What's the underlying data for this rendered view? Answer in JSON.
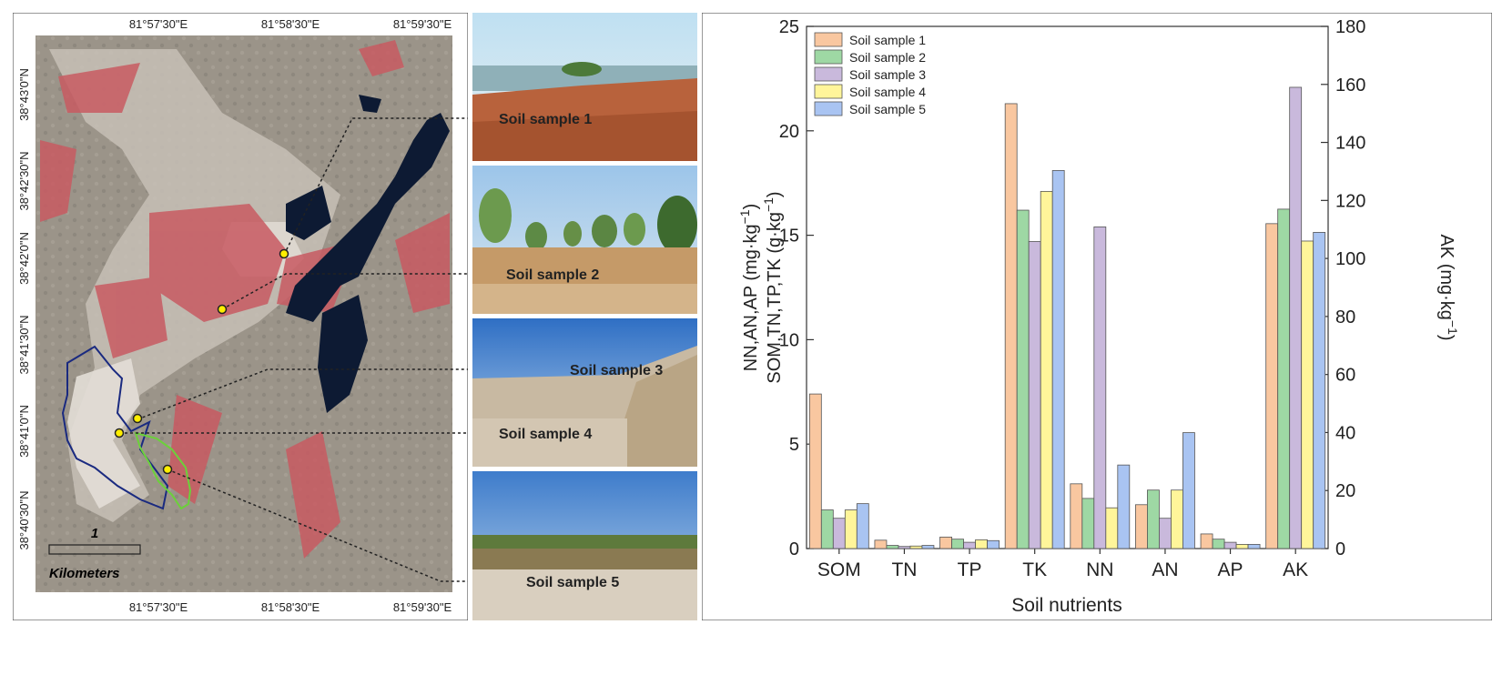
{
  "map": {
    "top_coords": [
      "81°57'30\"E",
      "81°58'30\"E",
      "81°59'30\"E"
    ],
    "bottom_coords": [
      "81°57'30\"E",
      "81°58'30\"E",
      "81°59'30\"E"
    ],
    "left_coords": [
      "38°43'0\"N",
      "38°42'30\"N",
      "38°42'0\"N",
      "38°41'30\"N",
      "38°41'0\"N",
      "38°40'30\"N"
    ],
    "scale_value": "1",
    "scale_unit": "Kilometers",
    "sample_labels": [
      "Soil sample 1",
      "Soil sample 2",
      "Soil sample 3",
      "Soil sample 4",
      "Soil sample 5"
    ]
  },
  "colors": {
    "s1": "#F9C7A0",
    "s2": "#9ED8A4",
    "s3": "#C9B9DC",
    "s4": "#FFF59A",
    "s5": "#A9C4F2",
    "map_bg": "#9c958a",
    "water": "#0d1a33",
    "vegetation": "#c85a62"
  },
  "chart_data": {
    "type": "bar",
    "categories": [
      "SOM",
      "TN",
      "TP",
      "TK",
      "NN",
      "AN",
      "AP",
      "AK"
    ],
    "series": [
      {
        "name": "Soil sample 1",
        "values": [
          7.4,
          0.4,
          0.55,
          21.3,
          3.1,
          2.1,
          0.7,
          112
        ]
      },
      {
        "name": "Soil sample 2",
        "values": [
          1.85,
          0.15,
          0.45,
          16.2,
          2.4,
          2.8,
          0.45,
          117
        ]
      },
      {
        "name": "Soil sample 3",
        "values": [
          1.45,
          0.1,
          0.3,
          14.7,
          15.4,
          1.45,
          0.3,
          159
        ]
      },
      {
        "name": "Soil sample 4",
        "values": [
          1.85,
          0.12,
          0.42,
          17.1,
          1.95,
          2.8,
          0.2,
          106
        ]
      },
      {
        "name": "Soil sample 5",
        "values": [
          2.15,
          0.15,
          0.38,
          18.1,
          4.0,
          5.55,
          0.2,
          109
        ]
      }
    ],
    "xlabel": "Soil nutrients",
    "ylabel_line1": "NN,AN,AP (mg·kg",
    "ylabel_line2": "SOM,TN,TP,TK (g·kg",
    "ylabel_right": "AK (mg·kg",
    "unit_exp": "−1",
    "unit_close": ")",
    "ylim": [
      0,
      25
    ],
    "y_right_lim": [
      0,
      180
    ],
    "y_ticks": [
      "0",
      "5",
      "10",
      "15",
      "20",
      "25"
    ],
    "y_right_ticks": [
      "0",
      "20",
      "40",
      "60",
      "80",
      "100",
      "120",
      "140",
      "160",
      "180"
    ],
    "right_axis_categories": [
      "AK"
    ],
    "legend_position": "top-left"
  }
}
